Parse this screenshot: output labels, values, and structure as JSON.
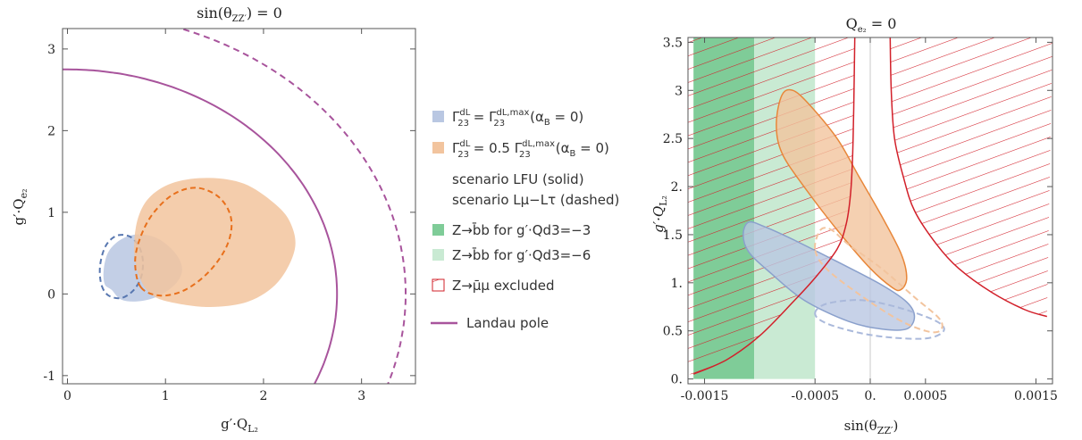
{
  "chart_data": [
    {
      "type": "area",
      "title": "sin(θZZ′) = 0",
      "xlabel": "g′·QL₂",
      "ylabel": "g′·Qe₂",
      "xlim": [
        -0.05,
        3.55
      ],
      "ylim": [
        -1.1,
        3.25
      ],
      "xticks": [
        0,
        1,
        2,
        3
      ],
      "yticks": [
        -1,
        0,
        1,
        2,
        3
      ],
      "tick_labels_x": [
        "0",
        "1",
        "2",
        "3"
      ],
      "tick_labels_y": [
        "-1",
        "0",
        "1",
        "2",
        "3"
      ],
      "series": [
        {
          "name": "Γ₂₃ᵈᴸ = Γ₂₃ᵈᴸ,ᵐᵃˣ (αB = 0) — LFU (solid)",
          "style": "filled",
          "color": "#b9c7e2",
          "points": [
            [
              0.45,
              0.05
            ],
            [
              0.55,
              -0.07
            ],
            [
              0.72,
              -0.09
            ],
            [
              0.92,
              -0.03
            ],
            [
              1.1,
              0.12
            ],
            [
              1.17,
              0.3
            ],
            [
              1.1,
              0.5
            ],
            [
              0.92,
              0.68
            ],
            [
              0.72,
              0.73
            ],
            [
              0.55,
              0.67
            ],
            [
              0.42,
              0.52
            ],
            [
              0.37,
              0.3
            ],
            [
              0.38,
              0.12
            ]
          ]
        },
        {
          "name": "Γ₂₃ᵈᴸ = Γ₂₃ᵈᴸ,ᵐᵃˣ (αB = 0) — Lμ−Lτ (dashed)",
          "style": "dashed",
          "color": "#5877b0",
          "points": [
            [
              0.35,
              0.1
            ],
            [
              0.42,
              -0.02
            ],
            [
              0.55,
              -0.05
            ],
            [
              0.67,
              0.04
            ],
            [
              0.75,
              0.2
            ],
            [
              0.77,
              0.4
            ],
            [
              0.73,
              0.58
            ],
            [
              0.64,
              0.7
            ],
            [
              0.52,
              0.72
            ],
            [
              0.42,
              0.64
            ],
            [
              0.36,
              0.5
            ],
            [
              0.33,
              0.3
            ]
          ]
        },
        {
          "name": "Γ₂₃ᵈᴸ = 0.5 Γ₂₃ᵈᴸ,ᵐᵃˣ (αB = 0) — LFU (solid)",
          "style": "filled",
          "color": "#f2c49e",
          "points": [
            [
              0.85,
              0.0
            ],
            [
              1.05,
              -0.1
            ],
            [
              1.45,
              -0.16
            ],
            [
              1.85,
              -0.09
            ],
            [
              2.15,
              0.15
            ],
            [
              2.32,
              0.55
            ],
            [
              2.27,
              0.88
            ],
            [
              2.1,
              1.12
            ],
            [
              1.8,
              1.35
            ],
            [
              1.45,
              1.42
            ],
            [
              1.1,
              1.37
            ],
            [
              0.85,
              1.2
            ],
            [
              0.72,
              0.93
            ],
            [
              0.68,
              0.55
            ],
            [
              0.73,
              0.22
            ]
          ]
        },
        {
          "name": "Γ₂₃ᵈᴸ = 0.5 Γ₂₃ᵈᴸ,ᵐᵃˣ (αB = 0) — Lμ−Lτ (dashed)",
          "style": "dashed",
          "color": "#e8701c",
          "points": [
            [
              0.75,
              0.08
            ],
            [
              0.95,
              -0.02
            ],
            [
              1.2,
              0.05
            ],
            [
              1.45,
              0.28
            ],
            [
              1.63,
              0.6
            ],
            [
              1.67,
              0.92
            ],
            [
              1.55,
              1.18
            ],
            [
              1.32,
              1.3
            ],
            [
              1.08,
              1.22
            ],
            [
              0.87,
              0.98
            ],
            [
              0.74,
              0.68
            ],
            [
              0.69,
              0.38
            ]
          ]
        },
        {
          "name": "Landau pole (solid)",
          "style": "line",
          "color": "#a8549c",
          "circle_center": [
            0,
            0
          ],
          "radius": 2.75
        },
        {
          "name": "Landau pole (dashed)",
          "style": "dashed-line",
          "color": "#a8549c",
          "circle_center": [
            0,
            0
          ],
          "radius": 3.45
        }
      ]
    },
    {
      "type": "area",
      "title": "Qe₂ = 0",
      "xlabel": "sin(θZZ′)",
      "ylabel": "g′·QL₂",
      "xlim": [
        -0.00165,
        0.00165
      ],
      "ylim": [
        -0.05,
        3.55
      ],
      "xticks": [
        -0.0015,
        -0.0005,
        0,
        0.0005,
        0.0015
      ],
      "yticks": [
        0,
        0.5,
        1,
        1.5,
        2,
        2.5,
        3,
        3.5
      ],
      "tick_labels_x": [
        "-0.0015",
        "-0.0005",
        "0.",
        "0.0005",
        "0.0015"
      ],
      "tick_labels_y": [
        "0.",
        "0.5",
        "1.",
        "1.5",
        "2.",
        "2.5",
        "3",
        "3.5"
      ],
      "bands": [
        {
          "name": "Z→b̄b for g′·Qd3=−3",
          "x_range": [
            -0.0016,
            -0.00105
          ],
          "color": "#7fcc98"
        },
        {
          "name": "Z→b̄b for g′·Qd3=−6",
          "x_range": [
            -0.00105,
            -0.0005
          ],
          "color": "#c9ead3"
        }
      ],
      "exclusion": {
        "name": "Z→μ̄μ excluded",
        "color": "#d2202a",
        "left_boundary": [
          [
            -0.0016,
            0.05
          ],
          [
            -0.0013,
            0.2
          ],
          [
            -0.001,
            0.45
          ],
          [
            -0.0007,
            0.8
          ],
          [
            -0.0005,
            1.05
          ],
          [
            -0.0003,
            1.35
          ],
          [
            -0.00022,
            1.6
          ],
          [
            -0.00018,
            1.9
          ],
          [
            -0.00016,
            2.3
          ],
          [
            -0.00015,
            2.8
          ],
          [
            -0.00014,
            3.55
          ]
        ],
        "right_boundary": [
          [
            0.00018,
            3.55
          ],
          [
            0.00019,
            3.0
          ],
          [
            0.00022,
            2.5
          ],
          [
            0.0003,
            2.1
          ],
          [
            0.0004,
            1.75
          ],
          [
            0.0006,
            1.4
          ],
          [
            0.0008,
            1.15
          ],
          [
            0.0011,
            0.9
          ],
          [
            0.0014,
            0.72
          ],
          [
            0.0016,
            0.65
          ]
        ]
      },
      "series": [
        {
          "name": "Γ₂₃ᵈᴸ,ᵐᵃˣ ellipse (solid)",
          "style": "filled",
          "color": "#b9c7e2",
          "points": [
            [
              -0.00115,
              1.5
            ],
            [
              -0.0011,
              1.63
            ],
            [
              -0.00095,
              1.58
            ],
            [
              -0.0007,
              1.45
            ],
            [
              -0.0003,
              1.22
            ],
            [
              0.0001,
              0.98
            ],
            [
              0.00033,
              0.8
            ],
            [
              0.0004,
              0.65
            ],
            [
              0.00033,
              0.52
            ],
            [
              0.0001,
              0.52
            ],
            [
              -0.0002,
              0.6
            ],
            [
              -0.0006,
              0.82
            ],
            [
              -0.0009,
              1.1
            ],
            [
              -0.0011,
              1.32
            ]
          ]
        },
        {
          "name": "Γ₂₃ᵈᴸ,ᵐᵃˣ ellipse (dashed)",
          "style": "dashed",
          "color": "#aab9db",
          "points": [
            [
              -0.0005,
              0.68
            ],
            [
              -0.0004,
              0.78
            ],
            [
              -0.0001,
              0.82
            ],
            [
              0.0002,
              0.76
            ],
            [
              0.0005,
              0.65
            ],
            [
              0.00065,
              0.56
            ],
            [
              0.00065,
              0.48
            ],
            [
              0.0005,
              0.42
            ],
            [
              0.0002,
              0.43
            ],
            [
              -0.0001,
              0.48
            ],
            [
              -0.0004,
              0.58
            ]
          ]
        },
        {
          "name": "0.5 Γ₂₃ᵈᴸ,ᵐᵃˣ ellipse (solid)",
          "style": "filled",
          "color": "#f2c49e",
          "points": [
            [
              -0.00085,
              2.65
            ],
            [
              -0.0008,
              2.95
            ],
            [
              -0.0007,
              3.0
            ],
            [
              -0.00055,
              2.85
            ],
            [
              -0.0003,
              2.5
            ],
            [
              -0.0001,
              2.1
            ],
            [
              0.0001,
              1.7
            ],
            [
              0.00028,
              1.3
            ],
            [
              0.00033,
              1.05
            ],
            [
              0.00028,
              0.93
            ],
            [
              0.0002,
              0.95
            ],
            [
              0.0,
              1.15
            ],
            [
              -0.0003,
              1.55
            ],
            [
              -0.0006,
              2.0
            ],
            [
              -0.0008,
              2.35
            ]
          ]
        },
        {
          "name": "0.5 Γ₂₃ᵈᴸ,ᵐᵃˣ ellipse (dashed)",
          "style": "dashed",
          "color": "#f2c49e",
          "points": [
            [
              -0.0005,
              1.35
            ],
            [
              -0.00045,
              1.55
            ],
            [
              -0.00035,
              1.55
            ],
            [
              -0.0002,
              1.4
            ],
            [
              0.0001,
              1.15
            ],
            [
              0.0004,
              0.85
            ],
            [
              0.00063,
              0.62
            ],
            [
              0.00063,
              0.5
            ],
            [
              0.0005,
              0.5
            ],
            [
              0.00025,
              0.62
            ],
            [
              -0.0001,
              0.88
            ],
            [
              -0.0004,
              1.15
            ]
          ]
        }
      ]
    }
  ],
  "legend": [
    {
      "kind": "swatch",
      "color": "#b9c7e2",
      "main": "Γ",
      "sub": "23",
      "sup": "dL",
      "eq": " = ",
      "main2": "Γ",
      "sub2": "23",
      "sup2": "dL,max",
      "tail": "(α",
      "tailsub": "B",
      "tailend": " = 0)"
    },
    {
      "kind": "swatch",
      "color": "#f2c49e",
      "main": "Γ",
      "sub": "23",
      "sup": "dL",
      "eq": " = 0.5 ",
      "main2": "Γ",
      "sub2": "23",
      "sup2": "dL,max",
      "tail": "(α",
      "tailsub": "B",
      "tailend": " = 0)"
    },
    {
      "kind": "text",
      "text": "scenario LFU (solid)"
    },
    {
      "kind": "text",
      "text": "scenario Lμ−Lτ (dashed)"
    },
    {
      "kind": "swatch",
      "color": "#7fcc98",
      "text": "Z→b̄b for g′·Qd3=−3"
    },
    {
      "kind": "swatch",
      "color": "#c9ead3",
      "text": "Z→b̄b for g′·Qd3=−6"
    },
    {
      "kind": "hatch",
      "color": "#d2202a",
      "text": "Z→μ̄μ excluded"
    },
    {
      "kind": "line",
      "color": "#a8549c",
      "text": "Landau pole"
    }
  ]
}
